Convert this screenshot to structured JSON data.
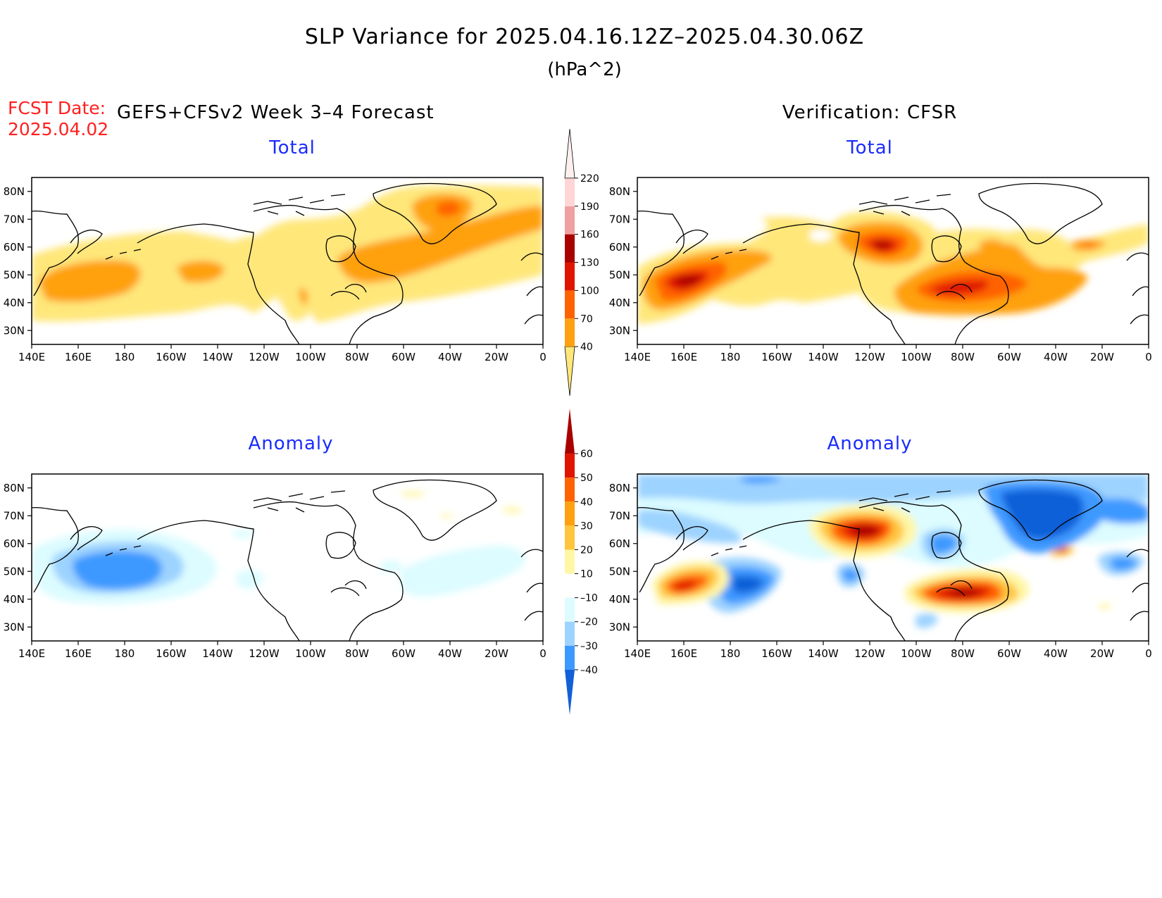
{
  "title": "SLP Variance for 2025.04.16.12Z–2025.04.30.06Z",
  "units": "(hPa^2)",
  "fcst_date_label": "FCST Date:",
  "fcst_date_value": "2025.04.02",
  "left_heading": "GEFS+CFSv2 Week 3–4 Forecast",
  "right_heading": "Verification: CFSR",
  "panel_titles": {
    "forecast_total": "Total",
    "verification_total": "Total",
    "forecast_anomaly": "Anomaly",
    "verification_anomaly": "Anomaly"
  },
  "lat_labels": [
    "80N",
    "70N",
    "60N",
    "50N",
    "40N",
    "30N"
  ],
  "lon_labels": [
    "140E",
    "160E",
    "180",
    "160W",
    "140W",
    "120W",
    "100W",
    "80W",
    "60W",
    "40W",
    "20W",
    "0"
  ],
  "map_extent": {
    "lon_min": 140,
    "lon_max": 360,
    "lat_min": 25,
    "lat_max": 85
  },
  "colorbar_total": {
    "levels": [
      "40",
      "70",
      "100",
      "130",
      "160",
      "190",
      "220"
    ],
    "colors": [
      "#ffe77a",
      "#ffa010",
      "#ff6200",
      "#e01500",
      "#a90000",
      "#f0a0a0",
      "#ffd5d5",
      "#fff0f0"
    ]
  },
  "colorbar_anomaly": {
    "levels": [
      "60",
      "50",
      "40",
      "30",
      "20",
      "10",
      "–10",
      "–20",
      "–30",
      "–40"
    ],
    "colors_top_to_bottom": [
      "#a90000",
      "#e01500",
      "#ff6200",
      "#ffa010",
      "#ffc53d",
      "#fff6a6",
      "#ffffff",
      "#dcfcff",
      "#9dd3ff",
      "#3d99ff",
      "#1160d8"
    ]
  },
  "colors": {
    "title_blue": "#1a2cff",
    "fcst_red": "#ff2020"
  }
}
